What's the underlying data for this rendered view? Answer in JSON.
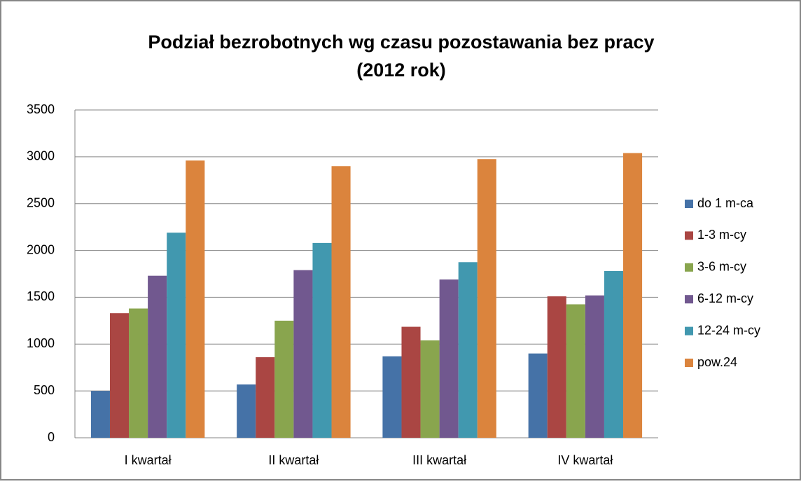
{
  "chart_data": {
    "type": "bar",
    "title": [
      "Podział bezrobotnych wg czasu pozostawania bez pracy",
      "(2012 rok)"
    ],
    "categories": [
      "I kwartał",
      "II kwartał",
      "III kwartał",
      "IV kwartał"
    ],
    "series": [
      {
        "name": "do 1 m-ca",
        "color": "#4572a7",
        "values": [
          500,
          570,
          870,
          900
        ]
      },
      {
        "name": "1-3 m-cy",
        "color": "#aa4643",
        "values": [
          1330,
          860,
          1185,
          1510
        ]
      },
      {
        "name": "3-6 m-cy",
        "color": "#89a54e",
        "values": [
          1380,
          1250,
          1040,
          1425
        ]
      },
      {
        "name": "6-12 m-cy",
        "color": "#71588f",
        "values": [
          1730,
          1790,
          1690,
          1520
        ]
      },
      {
        "name": "12-24 m-cy",
        "color": "#4198af",
        "values": [
          2190,
          2080,
          1875,
          1780
        ]
      },
      {
        "name": "pow.24",
        "color": "#db843d",
        "values": [
          2960,
          2900,
          2975,
          3040
        ]
      }
    ],
    "ylim": [
      0,
      3500
    ],
    "yticks": [
      0,
      500,
      1000,
      1500,
      2000,
      2500,
      3000,
      3500
    ],
    "grid": true,
    "legend": "right"
  }
}
